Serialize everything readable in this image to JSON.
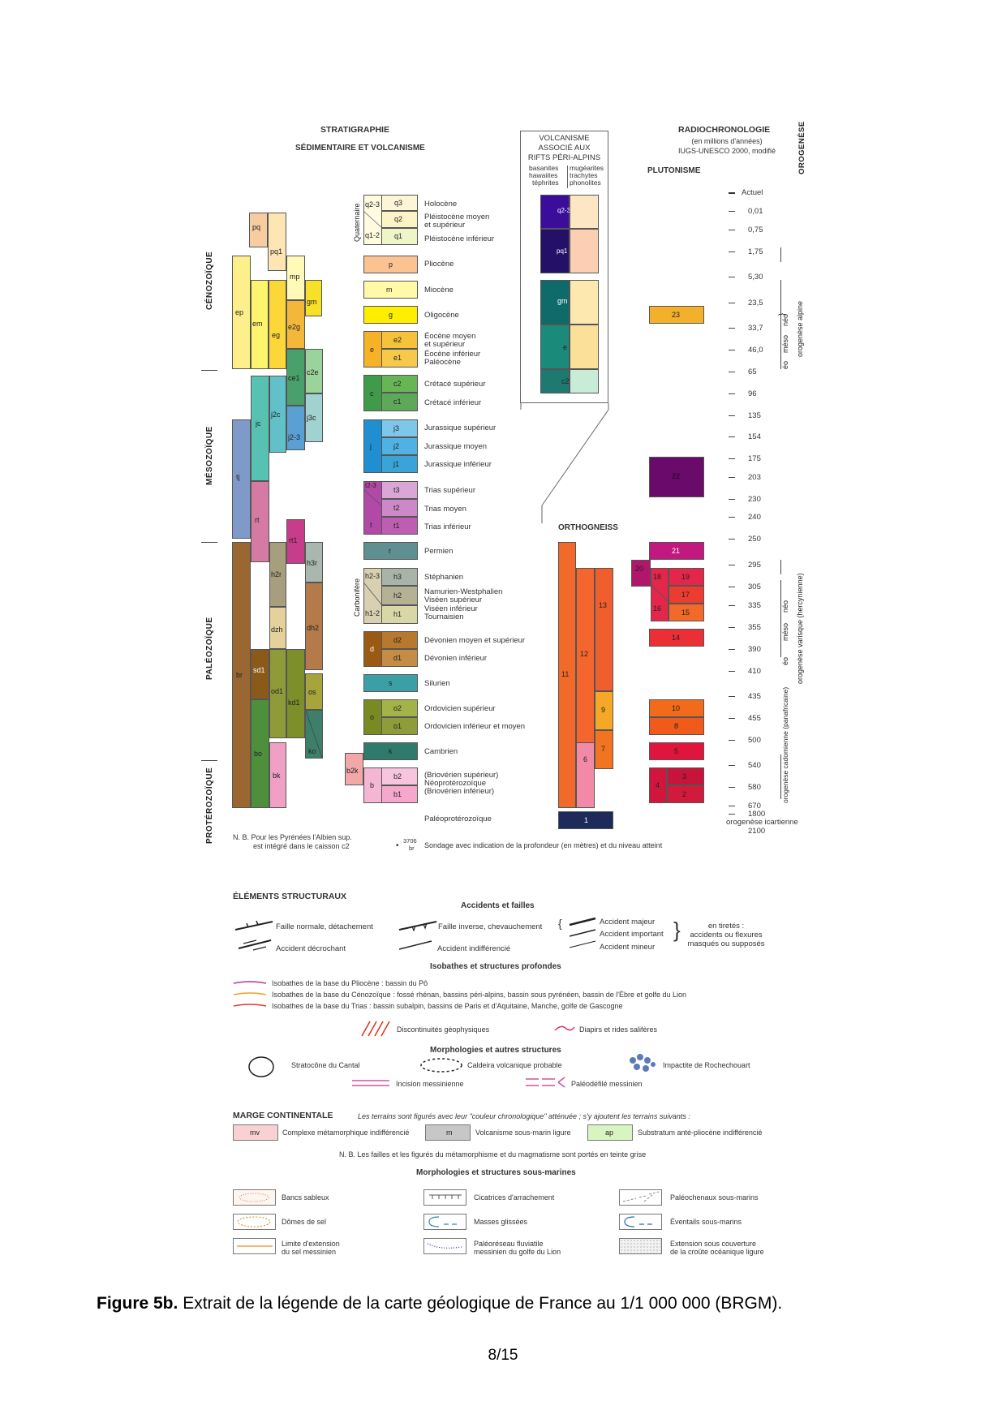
{
  "headers": {
    "stratigraphie_1": "STRATIGRAPHIE",
    "stratigraphie_2": "SÉDIMENTAIRE ET VOLCANISME",
    "volcanisme": [
      "VOLCANISME",
      "ASSOCIÉ AUX",
      "RIFTS PÉRI-ALPINS"
    ],
    "volc_left": [
      "basanites",
      "hawaiites",
      "téphrites"
    ],
    "volc_right": [
      "mugéarites",
      "trachytes",
      "phonolites"
    ],
    "radiochronologie": "RADIOCHRONOLOGIE",
    "radio_sub1": "(en millions d'années)",
    "radio_sub2": "IUGS-UNESCO 2000, modifié",
    "orogenese": "OROGENÈSE",
    "plutonisme": "PLUTONISME",
    "orthogneiss": "ORTHOGNEISS",
    "quaternaire": "Quaternaire",
    "carbonifere": "Carbonifère"
  },
  "eras": [
    "CÉNOZOÏQUE",
    "MÉSOZOÏQUE",
    "PALÉOZOÏQUE",
    "PROTÉROZOÏQUE"
  ],
  "stages": {
    "holocene": "Holocène",
    "pleist_moyen": "Pléistocène moyen",
    "pleist_moyen2": "et supérieur",
    "pleist_inf": "Pléistocène inférieur",
    "pliocene": "Pliocène",
    "miocene": "Miocène",
    "oligocene": "Oligocène",
    "eocene_moyen": "Éocène moyen",
    "eocene_moyen2": "et supérieur",
    "eocene_inf": "Éocène inférieur",
    "paleocene": "Paléocène",
    "cretace_sup": "Crétacé supérieur",
    "cretace_inf": "Crétacé inférieur",
    "jura_sup": "Jurassique supérieur",
    "jura_moy": "Jurassique moyen",
    "jura_inf": "Jurassique inférieur",
    "trias_sup": "Trias supérieur",
    "trias_moy": "Trias moyen",
    "trias_inf": "Trias inférieur",
    "permien": "Permien",
    "stephanien": "Stéphanien",
    "namurien": "Namurien-Westphalien",
    "visean_sup": "Viséen supérieur",
    "visean_inf": "Viséen inférieur",
    "tournaisien": "Tournaisien",
    "devonien_ms": "Dévonien moyen et supérieur",
    "devonien_inf": "Dévonien inférieur",
    "silurien": "Silurien",
    "ordo_sup": "Ordovicien supérieur",
    "ordo_inf": "Ordovicien inférieur et moyen",
    "cambrien": "Cambrien",
    "brio_sup": "(Briovérien supérieur)",
    "neoprot": "Néoprotérozoïque",
    "brio_inf": "(Briovérien inférieur)",
    "paleoprot": "Paléoprotérozoïque"
  },
  "ages": [
    "Actuel",
    "0,01",
    "0,75",
    "1,75",
    "5,30",
    "23,5",
    "33,7",
    "46,0",
    "65",
    "96",
    "135",
    "154",
    "175",
    "203",
    "230",
    "240",
    "250",
    "295",
    "305",
    "335",
    "355",
    "390",
    "410",
    "435",
    "455",
    "500",
    "540",
    "580",
    "670",
    "1800",
    "2100"
  ],
  "orogeny": {
    "alpine": "orogenèse alpine",
    "neo": "néo",
    "meso": "méso",
    "eo": "éo",
    "varisque": "orogenèse varisque (hercynienne)",
    "cadomienne": "orogenèse cadomienne (panafricaine)",
    "icartienne": "orogenèse icartienne"
  },
  "notes": {
    "nb1": "N. B. Pour les Pyrénées l'Albien sup.",
    "nb2": "est intégré dans le caisson c2",
    "sondage_num": "3706",
    "sondage_br": "br",
    "sondage": "Sondage avec indication de la profondeur (en mètres) et du niveau atteint"
  },
  "structural": {
    "title": "ÉLÉMENTS STRUCTURAUX",
    "accidents_title": "Accidents et failles",
    "faille_normale": "Faille normale, détachement",
    "faille_inverse": "Faille inverse, chevauchement",
    "accident_majeur": "Accident majeur",
    "accident_important": "Accident important",
    "accident_mineur": "Accident mineur",
    "tiretes1": "en tiretés :",
    "tiretes2": "accidents ou flexures",
    "tiretes3": "masqués ou supposés",
    "decrochant": "Accident décrochant",
    "indiff": "Accident indifférencié",
    "isobathes_title": "Isobathes et structures profondes",
    "iso1": "Isobathes de la base du Pliocène : bassin du Pô",
    "iso2": "Isobathes de la base du Cénozoïque : fossé rhénan, bassins péri-alpins, bassin sous pyrénéen, bassin de l'Èbre et golfe du Lion",
    "iso3": "Isobathes de la base du Trias : bassin subalpin, bassins de Paris et d'Aquitaine, Manche, golfe de Gascogne",
    "discontinuites": "Discontinuités géophysiques",
    "diapirs": "Diapirs et rides salifères",
    "morpho_title": "Morphologies et autres structures",
    "stratocone": "Stratocône du Cantal",
    "caldeira": "Caldeira volcanique probable",
    "impactite": "Impactite de Rochechouart",
    "incision": "Incision messinienne",
    "paleodefile": "Paléodéfilé messinien"
  },
  "marge": {
    "title": "MARGE CONTINENTALE",
    "intro": "Les terrains sont figurés avec leur \"couleur chronologique\" atténuée ; s'y ajoutent les terrains suivants :",
    "mv_code": "mv",
    "mv": "Complexe métamorphique indifférencié",
    "m_code": "m",
    "m": "Volcanisme sous-marin ligure",
    "ap_code": "ap",
    "ap": "Substratum anté-pliocène indifférencié",
    "nb": "N. B. Les failles et les figurés du métamorphisme et du magmatisme sont portés en teinte grise",
    "sous_marines_title": "Morphologies et structures sous-marines",
    "bancs": "Bancs sableux",
    "domes": "Dômes de sel",
    "limite1": "Limite d'extension",
    "limite2": "du sel messinien",
    "cicatrices": "Cicatrices d'arrachement",
    "masses": "Masses glissées",
    "paleoreseau1": "Paléoréseau fluviatile",
    "paleoreseau2": "messinien du golfe du Lion",
    "paleochenaux": "Paléochenaux sous-marins",
    "eventails": "Éventails sous-marins",
    "extension1": "Extension sous couverture",
    "extension2": "de la croûte océanique ligure"
  },
  "caption": {
    "label": "Figure 5b.",
    "text": " Extrait de la légende de la carte géologique de France au 1/1 000 000 (BRGM)."
  },
  "page": "8/15"
}
